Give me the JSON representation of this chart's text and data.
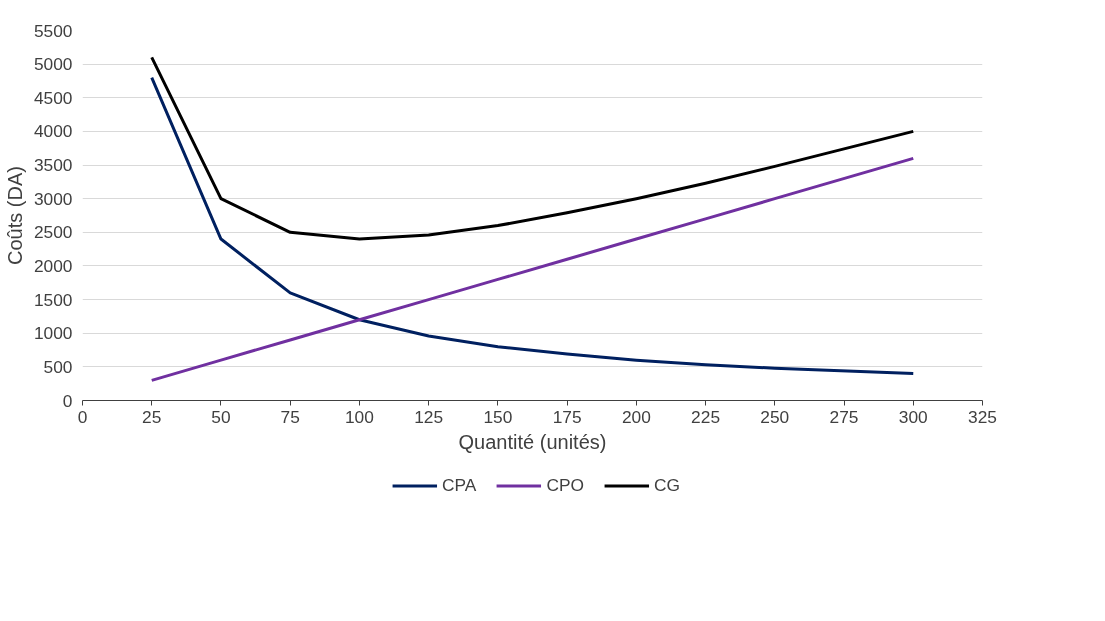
{
  "chart_data": {
    "type": "line",
    "xlabel": "Quantité (unités)",
    "ylabel": "Coûts (DA)",
    "x": [
      25,
      50,
      75,
      100,
      125,
      150,
      175,
      200,
      225,
      250,
      300
    ],
    "series": [
      {
        "name": "CPA",
        "color": "#002060",
        "values": [
          4800,
          2400,
          1600,
          1200,
          960,
          800,
          690,
          600,
          530,
          480,
          400
        ]
      },
      {
        "name": "CPO",
        "color": "#7030a0",
        "values": [
          300,
          600,
          900,
          1200,
          1500,
          1800,
          2100,
          2400,
          2700,
          3000,
          3600
        ]
      },
      {
        "name": "CG",
        "color": "#000000",
        "values": [
          5100,
          3000,
          2500,
          2400,
          2460,
          2600,
          2790,
          3000,
          3230,
          3480,
          4000
        ]
      }
    ],
    "xlim": [
      0,
      325
    ],
    "xticks": [
      0,
      25,
      50,
      75,
      100,
      125,
      150,
      175,
      200,
      225,
      250,
      275,
      300,
      325
    ],
    "ylim": [
      0,
      5500
    ],
    "yticks": [
      0,
      500,
      1000,
      1500,
      2000,
      2500,
      3000,
      3500,
      4000,
      4500,
      5000,
      5500
    ],
    "grid": "y",
    "legend": "bottom",
    "marker": "none",
    "line_style": "solid"
  }
}
